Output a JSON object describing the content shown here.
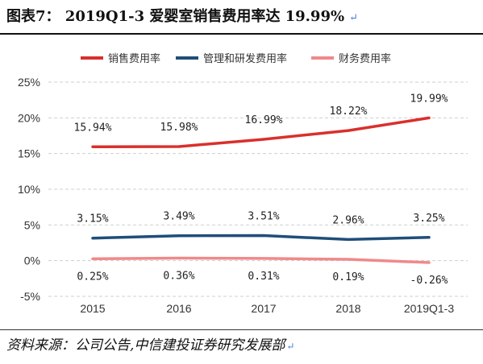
{
  "header": {
    "title": "图表7： 2019Q1-3 爱婴室销售费用率达 19.99%",
    "return_mark": "↵"
  },
  "footer": {
    "source": "资料来源：公司公告,中信建投证券研究发展部",
    "return_mark": "↵"
  },
  "chart_data": {
    "type": "line",
    "title": "",
    "xlabel": "",
    "ylabel": "",
    "categories": [
      "2015",
      "2016",
      "2017",
      "2018",
      "2019Q1-3"
    ],
    "yticks": [
      "25%",
      "20%",
      "15%",
      "10%",
      "5%",
      "0%",
      "-5%"
    ],
    "ylim": [
      -5,
      25
    ],
    "grid": "horizontal dashed",
    "legend_position": "top",
    "series": [
      {
        "name": "销售费用率",
        "color": "#d9302c",
        "values": [
          15.94,
          15.98,
          16.99,
          18.22,
          19.99
        ],
        "labels": [
          "15.94%",
          "15.98%",
          "16.99%",
          "18.22%",
          "19.99%"
        ]
      },
      {
        "name": "管理和研发费用率",
        "color": "#1f4e79",
        "values": [
          3.15,
          3.49,
          3.51,
          2.96,
          3.25
        ],
        "labels": [
          "3.15%",
          "3.49%",
          "3.51%",
          "2.96%",
          "3.25%"
        ]
      },
      {
        "name": "财务费用率",
        "color": "#f0898a",
        "values": [
          0.25,
          0.36,
          0.31,
          0.19,
          -0.26
        ],
        "labels": [
          "0.25%",
          "0.36%",
          "0.31%",
          "0.19%",
          "-0.26%"
        ]
      }
    ]
  }
}
